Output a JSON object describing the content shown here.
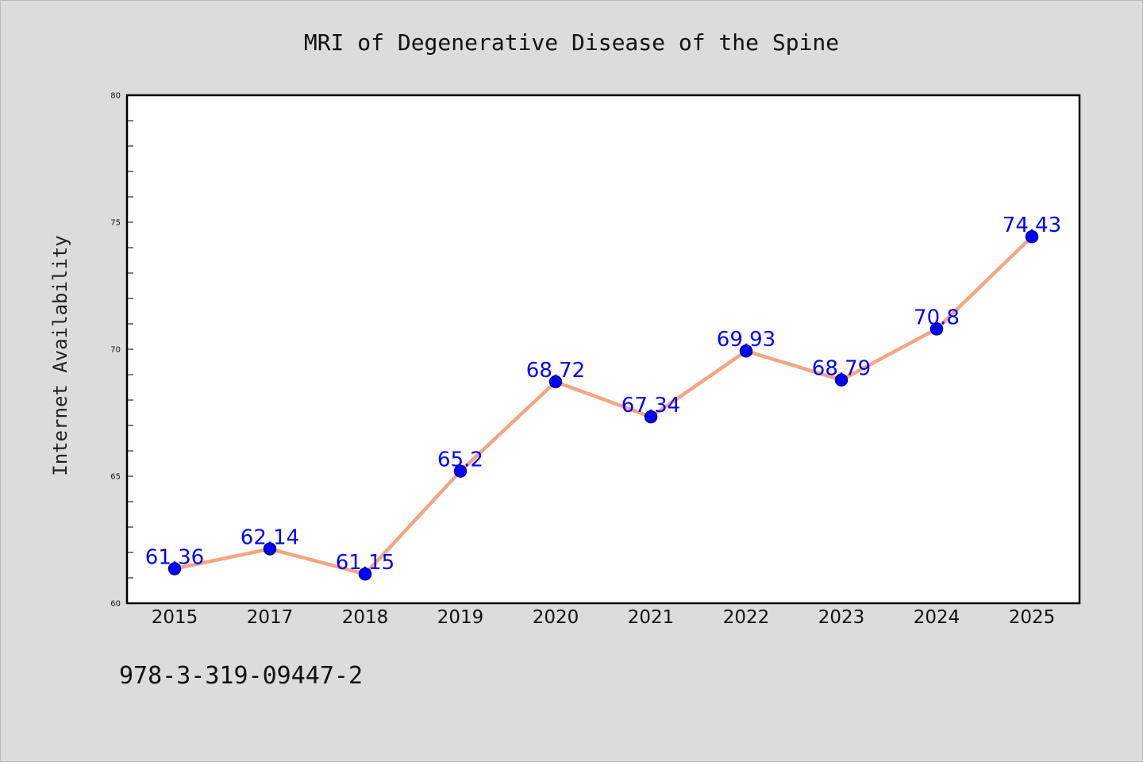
{
  "chart_data": {
    "type": "line",
    "title": "MRI of Degenerative Disease of the Spine",
    "xlabel": "",
    "ylabel": "Internet Availability",
    "categories": [
      "2015",
      "2017",
      "2018",
      "2019",
      "2020",
      "2021",
      "2022",
      "2023",
      "2024",
      "2025"
    ],
    "values": [
      61.36,
      62.14,
      61.15,
      65.2,
      68.72,
      67.34,
      69.93,
      68.79,
      70.8,
      74.43
    ],
    "data_labels": [
      "61.36",
      "62.14",
      "61.15",
      "65.2",
      "68.72",
      "67.34",
      "69.93",
      "68.79",
      "70.8",
      "74.43"
    ],
    "ylim": [
      60,
      80
    ],
    "yticks": [
      "60",
      "65",
      "70",
      "75",
      "80"
    ],
    "grid": false,
    "legend": "none",
    "colors": {
      "line": "#f4a582",
      "marker_fill": "#0000ff",
      "marker_edge": "#00008b",
      "data_label": "#0000ff",
      "plot_background": "#ffffff",
      "figure_background": "#dcdcdc"
    }
  },
  "footnote": "978-3-319-09447-2"
}
